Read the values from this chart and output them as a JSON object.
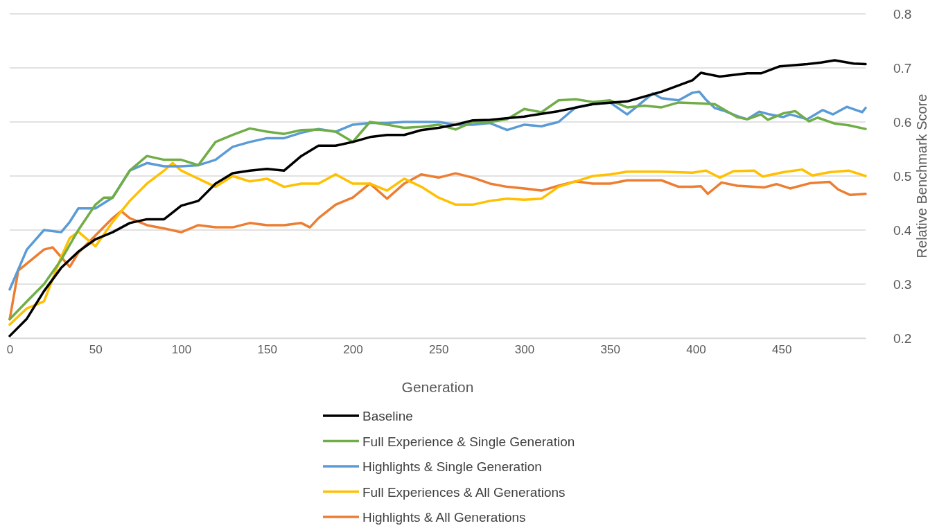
{
  "chart_data": {
    "type": "line",
    "xlabel": "Generation",
    "ylabel": "Relative Benchmark Score",
    "xlim": [
      0,
      499
    ],
    "xticks": [
      0,
      50,
      100,
      150,
      200,
      250,
      300,
      350,
      400,
      450
    ],
    "ylim": [
      0.2,
      0.8
    ],
    "yticks": [
      0.2,
      0.3,
      0.4,
      0.5,
      0.6,
      0.7,
      0.8
    ],
    "grid": "y",
    "legend": "bottom",
    "line_style": "solid",
    "marker": "none",
    "series": [
      {
        "name": "Baseline",
        "color": "#000000",
        "x": [
          0,
          10,
          20,
          30,
          40,
          50,
          60,
          70,
          80,
          90,
          100,
          110,
          120,
          130,
          140,
          150,
          160,
          170,
          180,
          190,
          200,
          210,
          220,
          230,
          240,
          250,
          260,
          270,
          280,
          300,
          320,
          340,
          360,
          380,
          398,
          403,
          414,
          430,
          438,
          449,
          465,
          473,
          481,
          492,
          499
        ],
        "values": [
          0.204,
          0.236,
          0.287,
          0.33,
          0.36,
          0.383,
          0.396,
          0.413,
          0.42,
          0.42,
          0.445,
          0.454,
          0.486,
          0.505,
          0.51,
          0.513,
          0.51,
          0.537,
          0.556,
          0.556,
          0.563,
          0.572,
          0.576,
          0.576,
          0.585,
          0.589,
          0.595,
          0.603,
          0.604,
          0.61,
          0.62,
          0.633,
          0.638,
          0.656,
          0.677,
          0.691,
          0.684,
          0.69,
          0.69,
          0.703,
          0.707,
          0.71,
          0.714,
          0.708,
          0.707
        ]
      },
      {
        "name": "Full Experience & Single Generation",
        "color": "#70ad47",
        "x": [
          0,
          10,
          20,
          30,
          40,
          50,
          55,
          60,
          70,
          80,
          90,
          100,
          110,
          120,
          130,
          140,
          150,
          160,
          170,
          180,
          190,
          200,
          210,
          220,
          230,
          240,
          250,
          260,
          270,
          280,
          290,
          300,
          310,
          320,
          330,
          340,
          350,
          360,
          370,
          380,
          390,
          398,
          411,
          424,
          430,
          438,
          442,
          451,
          458,
          466,
          471,
          481,
          489,
          499
        ],
        "values": [
          0.235,
          0.268,
          0.3,
          0.345,
          0.4,
          0.447,
          0.46,
          0.46,
          0.51,
          0.537,
          0.53,
          0.53,
          0.52,
          0.563,
          0.576,
          0.588,
          0.582,
          0.578,
          0.585,
          0.586,
          0.582,
          0.563,
          0.6,
          0.595,
          0.589,
          0.591,
          0.595,
          0.586,
          0.6,
          0.6,
          0.605,
          0.624,
          0.618,
          0.64,
          0.642,
          0.637,
          0.64,
          0.627,
          0.63,
          0.627,
          0.636,
          0.635,
          0.633,
          0.609,
          0.605,
          0.614,
          0.604,
          0.616,
          0.62,
          0.601,
          0.608,
          0.597,
          0.594,
          0.587
        ]
      },
      {
        "name": "Highlights & Single Generation",
        "color": "#5b9bd5",
        "x": [
          0,
          10,
          20,
          30,
          35,
          40,
          50,
          60,
          70,
          80,
          90,
          100,
          110,
          120,
          130,
          140,
          150,
          160,
          170,
          180,
          190,
          200,
          210,
          220,
          230,
          240,
          250,
          260,
          270,
          280,
          290,
          300,
          310,
          320,
          330,
          340,
          350,
          360,
          370,
          375,
          380,
          390,
          398,
          402,
          406,
          411,
          417,
          424,
          430,
          437,
          443,
          451,
          455,
          465,
          474,
          480,
          488,
          497,
          499
        ],
        "values": [
          0.29,
          0.364,
          0.4,
          0.396,
          0.415,
          0.44,
          0.44,
          0.46,
          0.51,
          0.524,
          0.518,
          0.518,
          0.52,
          0.53,
          0.554,
          0.563,
          0.57,
          0.57,
          0.58,
          0.587,
          0.582,
          0.595,
          0.598,
          0.598,
          0.6,
          0.6,
          0.6,
          0.595,
          0.595,
          0.598,
          0.585,
          0.595,
          0.592,
          0.6,
          0.627,
          0.633,
          0.636,
          0.614,
          0.64,
          0.653,
          0.644,
          0.64,
          0.654,
          0.656,
          0.641,
          0.626,
          0.62,
          0.611,
          0.605,
          0.619,
          0.614,
          0.609,
          0.614,
          0.605,
          0.622,
          0.614,
          0.628,
          0.618,
          0.626
        ]
      },
      {
        "name": "Full Experiences & All Generations",
        "color": "#ffc000",
        "x": [
          0,
          10,
          20,
          30,
          35,
          40,
          50,
          60,
          70,
          80,
          90,
          95,
          100,
          110,
          120,
          130,
          140,
          150,
          160,
          170,
          180,
          190,
          200,
          210,
          220,
          230,
          240,
          250,
          260,
          270,
          280,
          290,
          300,
          310,
          320,
          330,
          340,
          350,
          360,
          380,
          398,
          406,
          414,
          422,
          434,
          439,
          451,
          462,
          468,
          478,
          489,
          499
        ],
        "values": [
          0.225,
          0.255,
          0.268,
          0.35,
          0.385,
          0.397,
          0.37,
          0.415,
          0.454,
          0.486,
          0.51,
          0.524,
          0.51,
          0.495,
          0.48,
          0.5,
          0.49,
          0.495,
          0.48,
          0.486,
          0.486,
          0.503,
          0.486,
          0.486,
          0.473,
          0.495,
          0.48,
          0.46,
          0.447,
          0.447,
          0.454,
          0.458,
          0.456,
          0.458,
          0.48,
          0.49,
          0.5,
          0.503,
          0.508,
          0.508,
          0.506,
          0.51,
          0.497,
          0.509,
          0.51,
          0.499,
          0.507,
          0.512,
          0.501,
          0.507,
          0.51,
          0.5
        ]
      },
      {
        "name": "Highlights & All Generations",
        "color": "#ed7d31",
        "x": [
          0,
          5,
          10,
          20,
          25,
          30,
          35,
          40,
          50,
          60,
          65,
          70,
          80,
          90,
          100,
          110,
          120,
          130,
          140,
          150,
          160,
          170,
          175,
          180,
          190,
          200,
          210,
          220,
          230,
          240,
          250,
          260,
          270,
          280,
          290,
          300,
          310,
          320,
          330,
          340,
          350,
          360,
          380,
          390,
          398,
          403,
          407,
          415,
          424,
          440,
          447,
          455,
          467,
          478,
          483,
          490,
          499
        ],
        "values": [
          0.235,
          0.325,
          0.338,
          0.364,
          0.368,
          0.35,
          0.332,
          0.358,
          0.39,
          0.422,
          0.435,
          0.422,
          0.409,
          0.403,
          0.396,
          0.409,
          0.405,
          0.405,
          0.413,
          0.409,
          0.409,
          0.413,
          0.405,
          0.422,
          0.447,
          0.46,
          0.486,
          0.458,
          0.486,
          0.503,
          0.497,
          0.505,
          0.497,
          0.486,
          0.48,
          0.477,
          0.473,
          0.482,
          0.49,
          0.486,
          0.486,
          0.492,
          0.492,
          0.48,
          0.48,
          0.481,
          0.467,
          0.488,
          0.482,
          0.479,
          0.485,
          0.477,
          0.487,
          0.489,
          0.475,
          0.465,
          0.467
        ]
      }
    ]
  }
}
